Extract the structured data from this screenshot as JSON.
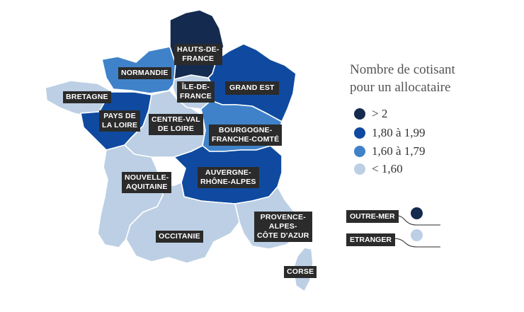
{
  "colors": {
    "darkest": "#142a4f",
    "dark": "#0f4aa0",
    "medium": "#3f82c9",
    "light": "#bccfe4",
    "label_bg": "#2b2b2b",
    "border": "#ffffff"
  },
  "regions": [
    {
      "id": "hauts-de-france",
      "label": "HAUTS-DE-\nFRANCE",
      "class": "> 2"
    },
    {
      "id": "normandie",
      "label": "NORMANDIE",
      "class": "1,60 à 1,79"
    },
    {
      "id": "ile-de-france",
      "label": "ÎLE-DE-\nFRANCE",
      "class": "< 1,60"
    },
    {
      "id": "grand-est",
      "label": "GRAND EST",
      "class": "1,80 à 1,99"
    },
    {
      "id": "bretagne",
      "label": "BRETAGNE",
      "class": "< 1,60"
    },
    {
      "id": "pays-de-la-loire",
      "label": "PAYS DE\nLA LOIRE",
      "class": "1,80 à 1,99"
    },
    {
      "id": "centre-val-de-loire",
      "label": "CENTRE-VAL\nDE LOIRE",
      "class": "< 1,60"
    },
    {
      "id": "bourgogne-franche-comte",
      "label": "BOURGOGNE-\nFRANCHE-COMTÉ",
      "class": "1,60 à 1,79"
    },
    {
      "id": "nouvelle-aquitaine",
      "label": "NOUVELLE-\nAQUITAINE",
      "class": "< 1,60"
    },
    {
      "id": "auvergne-rhone-alpes",
      "label": "AUVERGNE-\nRHÔNE-ALPES",
      "class": "1,80 à 1,99"
    },
    {
      "id": "occitanie",
      "label": "OCCITANIE",
      "class": "< 1,60"
    },
    {
      "id": "provence-alpes-cote-d-azur",
      "label": "PROVENCE-\nALPES-\nCÔTE D'AZUR",
      "class": "< 1,60"
    },
    {
      "id": "corse",
      "label": "CORSE",
      "class": "< 1,60"
    }
  ],
  "legend": {
    "title": "Nombre de cotisant\npour un allocataire",
    "items": [
      {
        "label": "> 2",
        "color": "#142a4f"
      },
      {
        "label": "1,80 à 1,99",
        "color": "#0f4aa0"
      },
      {
        "label": "1,60 à 1,79",
        "color": "#3f82c9"
      },
      {
        "label": "< 1,60",
        "color": "#bccfe4"
      }
    ]
  },
  "extras": [
    {
      "label": "OUTRE-MER",
      "class": "> 2"
    },
    {
      "label": "ETRANGER",
      "class": "< 1,60"
    }
  ]
}
